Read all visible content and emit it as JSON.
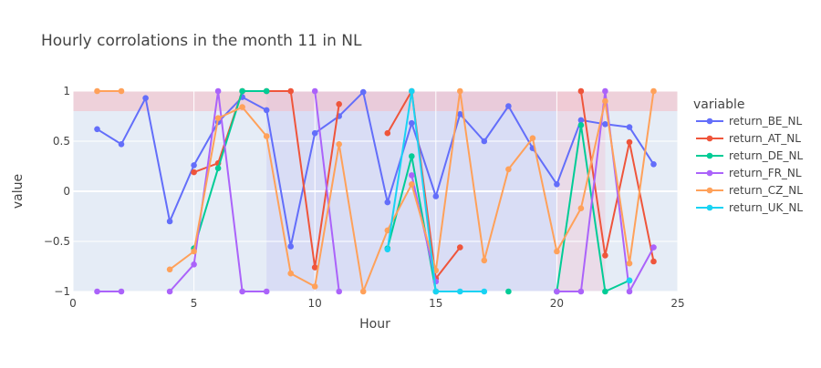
{
  "chart_data": {
    "type": "line",
    "title": "Hourly corrolations in the month 11 in NL",
    "xlabel": "Hour",
    "ylabel": "value",
    "xlim": [
      0,
      25
    ],
    "ylim": [
      -1,
      1
    ],
    "xticks": [
      0,
      5,
      10,
      15,
      20,
      25
    ],
    "xtick_labels": [
      "0",
      "5",
      "10",
      "15",
      "20",
      "25"
    ],
    "yticks": [
      -1,
      -0.5,
      0,
      0.5,
      1
    ],
    "ytick_labels": [
      "−1",
      "−0.5",
      "0",
      "0.5",
      "1"
    ],
    "grid": true,
    "legend": {
      "title": "variable",
      "placement": "right"
    },
    "highlight_band": {
      "y_from": 0.8,
      "y_to": 1,
      "color": "#f3c0c8"
    },
    "highlight_regions": [
      {
        "x_from": 8,
        "x_to": 20,
        "color": "#c9ccf5"
      },
      {
        "x_from": 20,
        "x_to": 22,
        "color": "#f0c8d8"
      }
    ],
    "series": [
      {
        "name": "return_BE_NL",
        "color": "#636efa",
        "points": [
          [
            1,
            0.62
          ],
          [
            2,
            0.47
          ],
          [
            3,
            0.93
          ],
          [
            4,
            -0.3
          ],
          [
            5,
            0.26
          ],
          [
            6,
            0.69
          ],
          [
            7,
            0.94
          ],
          [
            8,
            0.81
          ],
          [
            9,
            -0.55
          ],
          [
            10,
            0.58
          ],
          [
            11,
            0.75
          ],
          [
            12,
            0.99
          ],
          [
            13,
            -0.11
          ],
          [
            14,
            0.68
          ],
          [
            15,
            -0.05
          ],
          [
            16,
            0.77
          ],
          [
            17,
            0.5
          ],
          [
            18,
            0.85
          ],
          [
            19,
            0.43
          ],
          [
            20,
            0.07
          ],
          [
            21,
            0.71
          ],
          [
            22,
            0.67
          ],
          [
            23,
            0.64
          ],
          [
            24,
            0.27
          ]
        ]
      },
      {
        "name": "return_AT_NL",
        "color": "#ef553b",
        "points": [
          [
            5,
            0.19
          ],
          [
            6,
            0.28
          ],
          [
            7,
            1.0
          ],
          [
            8,
            1.0
          ],
          [
            9,
            1.0
          ],
          [
            10,
            -0.76
          ],
          [
            11,
            0.87
          ],
          [
            12,
            null
          ],
          [
            13,
            0.58
          ],
          [
            14,
            1.0
          ],
          [
            15,
            -0.87
          ],
          [
            16,
            -0.56
          ],
          [
            17,
            null
          ],
          [
            18,
            null
          ],
          [
            19,
            null
          ],
          [
            20,
            null
          ],
          [
            21,
            1.0
          ],
          [
            22,
            -0.64
          ],
          [
            23,
            0.49
          ],
          [
            24,
            -0.7
          ]
        ]
      },
      {
        "name": "return_DE_NL",
        "color": "#00cc96",
        "points": [
          [
            5,
            -0.57
          ],
          [
            6,
            0.23
          ],
          [
            7,
            1.0
          ],
          [
            8,
            1.0
          ],
          [
            9,
            null
          ],
          [
            10,
            null
          ],
          [
            11,
            null
          ],
          [
            12,
            null
          ],
          [
            13,
            -0.57
          ],
          [
            14,
            0.35
          ],
          [
            15,
            -1.0
          ],
          [
            16,
            null
          ],
          [
            17,
            null
          ],
          [
            18,
            -1.0
          ],
          [
            19,
            null
          ],
          [
            20,
            -1.0
          ],
          [
            21,
            0.66
          ],
          [
            22,
            -1.0
          ],
          [
            23,
            -0.89
          ]
        ]
      },
      {
        "name": "return_FR_NL",
        "color": "#ab63fa",
        "points": [
          [
            1,
            -1.0
          ],
          [
            2,
            -1.0
          ],
          [
            3,
            null
          ],
          [
            4,
            -1.0
          ],
          [
            5,
            -0.73
          ],
          [
            6,
            1.0
          ],
          [
            7,
            -1.0
          ],
          [
            8,
            -1.0
          ],
          [
            9,
            null
          ],
          [
            10,
            1.0
          ],
          [
            11,
            -1.0
          ],
          [
            12,
            null
          ],
          [
            13,
            null
          ],
          [
            14,
            0.16
          ],
          [
            15,
            -0.9
          ],
          [
            16,
            null
          ],
          [
            17,
            null
          ],
          [
            18,
            null
          ],
          [
            19,
            null
          ],
          [
            20,
            -1.0
          ],
          [
            21,
            -1.0
          ],
          [
            22,
            1.0
          ],
          [
            23,
            -1.0
          ],
          [
            24,
            -0.56
          ]
        ]
      },
      {
        "name": "return_CZ_NL",
        "color": "#ffa15a",
        "points": [
          [
            1,
            1.0
          ],
          [
            2,
            1.0
          ],
          [
            3,
            null
          ],
          [
            4,
            -0.78
          ],
          [
            5,
            -0.6
          ],
          [
            6,
            0.73
          ],
          [
            7,
            0.84
          ],
          [
            8,
            0.55
          ],
          [
            9,
            -0.82
          ],
          [
            10,
            -0.95
          ],
          [
            11,
            0.47
          ],
          [
            12,
            -1.0
          ],
          [
            13,
            -0.39
          ],
          [
            14,
            0.07
          ],
          [
            15,
            -0.79
          ],
          [
            16,
            1.0
          ],
          [
            17,
            -0.69
          ],
          [
            18,
            0.22
          ],
          [
            19,
            0.53
          ],
          [
            20,
            -0.6
          ],
          [
            21,
            -0.17
          ],
          [
            22,
            0.9
          ],
          [
            23,
            -0.72
          ],
          [
            24,
            1.0
          ]
        ]
      },
      {
        "name": "return_UK_NL",
        "color": "#19d3f3",
        "points": [
          [
            13,
            -0.58
          ],
          [
            14,
            1.0
          ],
          [
            15,
            -1.0
          ],
          [
            16,
            -1.0
          ],
          [
            17,
            -1.0
          ],
          [
            18,
            null
          ],
          [
            19,
            null
          ],
          [
            20,
            null
          ],
          [
            21,
            null
          ],
          [
            22,
            null
          ],
          [
            23,
            -0.89
          ]
        ]
      }
    ]
  }
}
